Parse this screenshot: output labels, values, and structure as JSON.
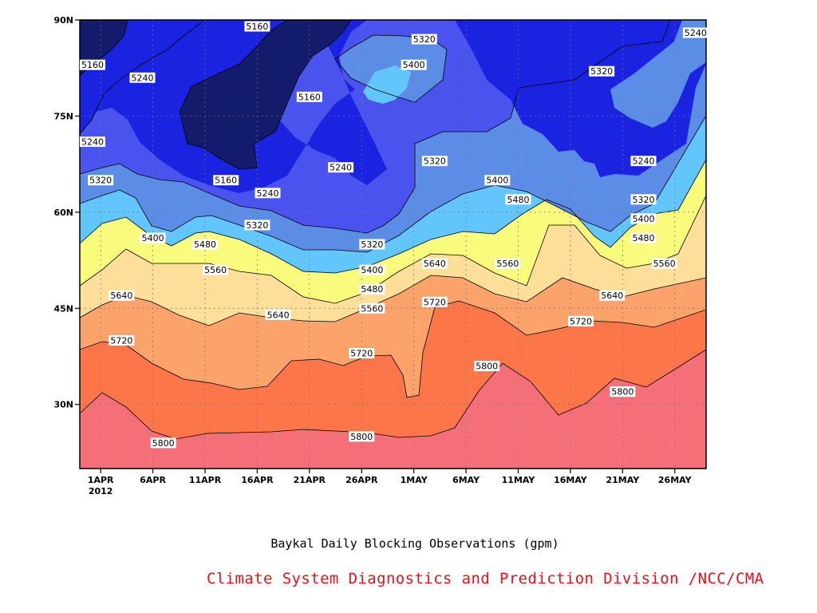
{
  "caption": "Baykal Daily Blocking Observations (gpm)",
  "credit": "Climate System Diagnostics and Prediction Division /NCC/CMA",
  "chart_data": {
    "type": "contour",
    "title": "Baykal Daily Blocking Observations (gpm)",
    "x_ticks": [
      "1APR",
      "6APR",
      "11APR",
      "16APR",
      "21APR",
      "26APR",
      "1MAY",
      "6MAY",
      "11MAY",
      "16MAY",
      "21MAY",
      "26MAY"
    ],
    "x_tick_year": "2012",
    "x_range": [
      "2012-03-30",
      "2012-05-29"
    ],
    "y_ticks": [
      "30N",
      "45N",
      "60N",
      "75N",
      "90N"
    ],
    "y_range": [
      20,
      90
    ],
    "grid": true,
    "levels": [
      5160,
      5240,
      5320,
      5400,
      5480,
      5560,
      5640,
      5720,
      5800
    ],
    "fill_colors": {
      "below_5160": "#131b6c",
      "5160_5240": "#1a24e0",
      "5240_5320": "#4b53ee",
      "5320_5400": "#5c8de6",
      "5400_5480": "#62c5fc",
      "5480_5560": "#f9fb7c",
      "5560_5640": "#fddf99",
      "5640_5720": "#fca26b",
      "5720_5800": "#fd7649",
      "above_5800": "#f56f79"
    },
    "contour_labels": [
      {
        "text": "5160",
        "date": "2012-04-16",
        "lat": 89
      },
      {
        "text": "5160",
        "date": "2012-03-30",
        "lat": 83
      },
      {
        "text": "5160",
        "date": "2012-04-21",
        "lat": 78
      },
      {
        "text": "5160",
        "date": "2012-04-13",
        "lat": 65
      },
      {
        "text": "5240",
        "date": "2012-04-05",
        "lat": 81
      },
      {
        "text": "5240",
        "date": "2012-03-31",
        "lat": 71
      },
      {
        "text": "5240",
        "date": "2012-04-24",
        "lat": 67
      },
      {
        "text": "5240",
        "date": "2012-04-17",
        "lat": 63
      },
      {
        "text": "5240",
        "date": "2012-05-23",
        "lat": 68
      },
      {
        "text": "5240",
        "date": "2012-05-28",
        "lat": 88
      },
      {
        "text": "5320",
        "date": "2012-04-01",
        "lat": 65
      },
      {
        "text": "5320",
        "date": "2012-04-16",
        "lat": 58
      },
      {
        "text": "5320",
        "date": "2012-04-27",
        "lat": 55
      },
      {
        "text": "5320",
        "date": "2012-05-02",
        "lat": 87
      },
      {
        "text": "5320",
        "date": "2012-05-03",
        "lat": 68
      },
      {
        "text": "5320",
        "date": "2012-05-19",
        "lat": 82
      },
      {
        "text": "5320",
        "date": "2012-05-23",
        "lat": 62
      },
      {
        "text": "5400",
        "date": "2012-05-01",
        "lat": 83
      },
      {
        "text": "5400",
        "date": "2012-04-06",
        "lat": 56
      },
      {
        "text": "5400",
        "date": "2012-04-27",
        "lat": 51
      },
      {
        "text": "5400",
        "date": "2012-05-09",
        "lat": 65
      },
      {
        "text": "5400",
        "date": "2012-05-23",
        "lat": 59
      },
      {
        "text": "5480",
        "date": "2012-04-11",
        "lat": 55
      },
      {
        "text": "5480",
        "date": "2012-04-27",
        "lat": 48
      },
      {
        "text": "5480",
        "date": "2012-05-11",
        "lat": 62
      },
      {
        "text": "5480",
        "date": "2012-05-23",
        "lat": 56
      },
      {
        "text": "5560",
        "date": "2012-04-12",
        "lat": 51
      },
      {
        "text": "5560",
        "date": "2012-04-27",
        "lat": 45
      },
      {
        "text": "5560",
        "date": "2012-05-10",
        "lat": 52
      },
      {
        "text": "5560",
        "date": "2012-05-25",
        "lat": 52
      },
      {
        "text": "5640",
        "date": "2012-04-03",
        "lat": 47
      },
      {
        "text": "5640",
        "date": "2012-04-18",
        "lat": 44
      },
      {
        "text": "5640",
        "date": "2012-05-03",
        "lat": 52
      },
      {
        "text": "5640",
        "date": "2012-05-20",
        "lat": 47
      },
      {
        "text": "5720",
        "date": "2012-04-03",
        "lat": 40
      },
      {
        "text": "5720",
        "date": "2012-04-26",
        "lat": 38
      },
      {
        "text": "5720",
        "date": "2012-05-03",
        "lat": 46
      },
      {
        "text": "5720",
        "date": "2012-05-17",
        "lat": 43
      },
      {
        "text": "5800",
        "date": "2012-04-07",
        "lat": 24
      },
      {
        "text": "5800",
        "date": "2012-04-26",
        "lat": 25
      },
      {
        "text": "5800",
        "date": "2012-05-08",
        "lat": 36
      },
      {
        "text": "5800",
        "date": "2012-05-21",
        "lat": 32
      }
    ]
  }
}
